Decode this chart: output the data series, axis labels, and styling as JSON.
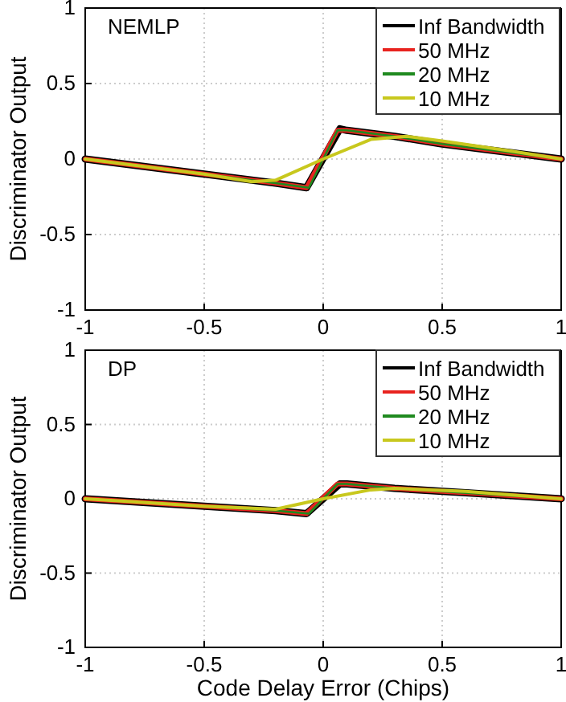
{
  "chart_data": [
    {
      "type": "line",
      "ylabel": "Discriminator Output",
      "annotations": [
        "NEMLP"
      ],
      "xlim": [
        -1,
        1
      ],
      "ylim": [
        -1,
        1
      ],
      "xticks": [
        -1,
        -0.5,
        0,
        0.5,
        1
      ],
      "yticks": [
        -1,
        -0.5,
        0,
        0.5,
        1
      ],
      "grid": true,
      "legend": "top right",
      "series": [
        {
          "name": "Inf Bandwidth",
          "color": "#000000",
          "x": [
            -1,
            -0.5,
            -0.2,
            -0.07,
            0.07,
            0.1,
            0.3,
            0.5,
            0.8,
            1
          ],
          "values": [
            0,
            -0.1,
            -0.16,
            -0.19,
            0.2,
            0.19,
            0.15,
            0.1,
            0.04,
            0
          ]
        },
        {
          "name": "50 MHz",
          "color": "#e8231f",
          "x": [
            -1,
            -0.5,
            -0.2,
            -0.07,
            0.06,
            0.1,
            0.3,
            0.5,
            0.8,
            1
          ],
          "values": [
            0,
            -0.1,
            -0.16,
            -0.19,
            0.19,
            0.19,
            0.15,
            0.1,
            0.04,
            0
          ]
        },
        {
          "name": "20 MHz",
          "color": "#1f8a1f",
          "x": [
            -1,
            -0.5,
            -0.2,
            -0.06,
            0.06,
            0.1,
            0.3,
            0.5,
            0.8,
            1
          ],
          "values": [
            0,
            -0.1,
            -0.16,
            -0.19,
            0.19,
            0.19,
            0.15,
            0.1,
            0.04,
            0
          ]
        },
        {
          "name": "10 MHz",
          "color": "#c8c81e",
          "x": [
            -1,
            -0.5,
            -0.3,
            -0.2,
            0,
            0.2,
            0.35,
            0.5,
            0.8,
            1
          ],
          "values": [
            0,
            -0.1,
            -0.15,
            -0.14,
            0,
            0.13,
            0.15,
            0.12,
            0.05,
            0
          ]
        }
      ]
    },
    {
      "type": "line",
      "xlabel": "Code Delay Error (Chips)",
      "ylabel": "Discriminator Output",
      "annotations": [
        "DP"
      ],
      "xlim": [
        -1,
        1
      ],
      "ylim": [
        -1,
        1
      ],
      "xticks": [
        -1,
        -0.5,
        0,
        0.5,
        1
      ],
      "yticks": [
        -1,
        -0.5,
        0,
        0.5,
        1
      ],
      "grid": true,
      "legend": "top right",
      "series": [
        {
          "name": "Inf Bandwidth",
          "color": "#000000",
          "x": [
            -1,
            -0.5,
            -0.2,
            -0.07,
            0.07,
            0.1,
            0.3,
            0.6,
            1
          ],
          "values": [
            0,
            -0.05,
            -0.08,
            -0.1,
            0.1,
            0.1,
            0.07,
            0.04,
            0
          ]
        },
        {
          "name": "50 MHz",
          "color": "#e8231f",
          "x": [
            -1,
            -0.5,
            -0.2,
            -0.07,
            0.06,
            0.1,
            0.3,
            0.6,
            1
          ],
          "values": [
            0,
            -0.05,
            -0.08,
            -0.1,
            0.1,
            0.1,
            0.07,
            0.04,
            0
          ]
        },
        {
          "name": "20 MHz",
          "color": "#1f8a1f",
          "x": [
            -1,
            -0.5,
            -0.2,
            -0.06,
            0.06,
            0.1,
            0.3,
            0.6,
            1
          ],
          "values": [
            0,
            -0.05,
            -0.08,
            -0.1,
            0.1,
            0.1,
            0.07,
            0.04,
            0
          ]
        },
        {
          "name": "10 MHz",
          "color": "#c8c81e",
          "x": [
            -1,
            -0.5,
            -0.2,
            0,
            0.2,
            0.3,
            0.6,
            1
          ],
          "values": [
            0,
            -0.05,
            -0.07,
            0,
            0.06,
            0.07,
            0.05,
            0
          ]
        }
      ]
    }
  ]
}
